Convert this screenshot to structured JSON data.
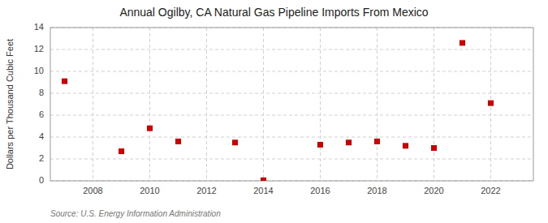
{
  "chart_data": {
    "type": "scatter",
    "title": "Annual Ogilby, CA Natural Gas Pipeline Imports From Mexico",
    "ylabel": "Dollars per Thousand Cubic Feet",
    "source": "Source: U.S. Energy Information Administration",
    "x": [
      2007,
      2009,
      2010,
      2011,
      2013,
      2014,
      2016,
      2017,
      2018,
      2019,
      2020,
      2021,
      2022
    ],
    "values": [
      9.1,
      2.7,
      4.8,
      3.6,
      3.5,
      0.05,
      3.3,
      3.5,
      3.6,
      3.2,
      3.0,
      12.6,
      7.1
    ],
    "xlim": [
      2006.5,
      2023.5
    ],
    "xticks": [
      2008,
      2010,
      2012,
      2014,
      2016,
      2018,
      2020,
      2022
    ],
    "ylim": [
      0,
      14
    ],
    "yticks": [
      0,
      2,
      4,
      6,
      8,
      10,
      12,
      14
    ],
    "color": "#cc0000",
    "marker": "square",
    "grid": true
  }
}
